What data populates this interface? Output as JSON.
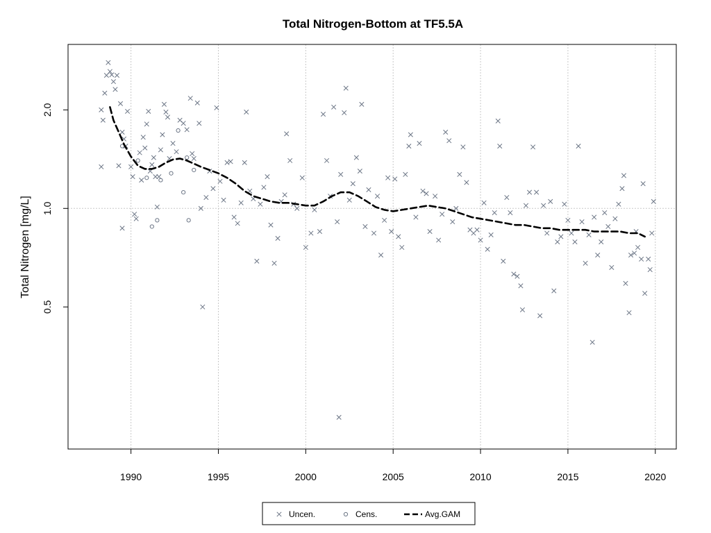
{
  "chart_data": {
    "type": "scatter",
    "title": "Total Nitrogen-Bottom at TF5.5A",
    "xlabel": "",
    "ylabel": "Total Nitrogen [mg/L]",
    "y_scale": "log",
    "xlim": [
      1986.4,
      2021.2
    ],
    "ylim": [
      0.184,
      3.17
    ],
    "x_ticks": [
      1990,
      1995,
      2000,
      2005,
      2010,
      2015,
      2020
    ],
    "x_tick_labels": [
      "1990",
      "1995",
      "2000",
      "2005",
      "2010",
      "2015",
      "2020"
    ],
    "y_ticks": [
      0.5,
      1.0,
      2.0
    ],
    "y_tick_labels": [
      "0.5",
      "1.0",
      "2.0"
    ],
    "grid": true,
    "reference_line_y": 1.0,
    "legend_position": "bottom-center",
    "colors": {
      "points": "#6b7585",
      "gam": "#000000",
      "grid": "#c8c8c8",
      "axes": "#000000"
    },
    "series": [
      {
        "name": "Uncen.",
        "marker": "x",
        "points": [
          [
            1988.3,
            2.0
          ],
          [
            1988.4,
            1.86
          ],
          [
            1988.5,
            2.25
          ],
          [
            1988.6,
            2.55
          ],
          [
            1988.7,
            2.79
          ],
          [
            1988.8,
            2.62
          ],
          [
            1988.9,
            2.56
          ],
          [
            1989.0,
            2.44
          ],
          [
            1989.1,
            2.31
          ],
          [
            1989.2,
            2.55
          ],
          [
            1989.4,
            2.09
          ],
          [
            1989.5,
            1.71
          ],
          [
            1989.6,
            1.63
          ],
          [
            1989.7,
            1.55
          ],
          [
            1988.3,
            1.34
          ],
          [
            1989.3,
            1.35
          ],
          [
            1989.5,
            0.87
          ],
          [
            1989.8,
            1.98
          ],
          [
            1990.0,
            1.34
          ],
          [
            1990.1,
            1.25
          ],
          [
            1990.2,
            0.96
          ],
          [
            1990.3,
            0.93
          ],
          [
            1990.5,
            1.48
          ],
          [
            1990.6,
            1.22
          ],
          [
            1990.7,
            1.65
          ],
          [
            1990.8,
            1.53
          ],
          [
            1990.9,
            1.81
          ],
          [
            1991.0,
            1.98
          ],
          [
            1991.1,
            1.3
          ],
          [
            1991.2,
            1.36
          ],
          [
            1991.3,
            1.43
          ],
          [
            1991.4,
            1.25
          ],
          [
            1991.5,
            1.01
          ],
          [
            1991.6,
            1.25
          ],
          [
            1991.7,
            1.51
          ],
          [
            1991.8,
            1.68
          ],
          [
            1991.9,
            2.08
          ],
          [
            1992.0,
            1.97
          ],
          [
            1992.1,
            1.9
          ],
          [
            1992.2,
            1.42
          ],
          [
            1992.4,
            1.58
          ],
          [
            1992.6,
            1.49
          ],
          [
            1992.8,
            1.86
          ],
          [
            1993.0,
            1.82
          ],
          [
            1993.2,
            1.74
          ],
          [
            1993.4,
            2.17
          ],
          [
            1993.5,
            1.47
          ],
          [
            1993.6,
            1.42
          ],
          [
            1993.8,
            2.1
          ],
          [
            1993.9,
            1.82
          ],
          [
            1994.0,
            1.0
          ],
          [
            1994.1,
            0.5
          ],
          [
            1994.3,
            1.08
          ],
          [
            1994.5,
            1.3
          ],
          [
            1994.7,
            1.15
          ],
          [
            1994.9,
            2.03
          ],
          [
            1995.1,
            1.21
          ],
          [
            1995.3,
            1.06
          ],
          [
            1995.5,
            1.38
          ],
          [
            1995.7,
            1.39
          ],
          [
            1995.9,
            0.94
          ],
          [
            1996.1,
            0.9
          ],
          [
            1996.3,
            1.04
          ],
          [
            1996.5,
            1.38
          ],
          [
            1996.6,
            1.97
          ],
          [
            1996.8,
            1.13
          ],
          [
            1997.0,
            1.07
          ],
          [
            1997.2,
            0.69
          ],
          [
            1997.4,
            1.03
          ],
          [
            1997.6,
            1.16
          ],
          [
            1997.8,
            1.25
          ],
          [
            1998.0,
            0.89
          ],
          [
            1998.2,
            0.68
          ],
          [
            1998.4,
            0.81
          ],
          [
            1998.6,
            1.05
          ],
          [
            1998.8,
            1.1
          ],
          [
            1998.9,
            1.69
          ],
          [
            1999.1,
            1.4
          ],
          [
            1999.3,
            1.03
          ],
          [
            1999.5,
            1.0
          ],
          [
            1999.8,
            1.24
          ],
          [
            2000.0,
            0.76
          ],
          [
            2000.3,
            0.84
          ],
          [
            2000.5,
            0.99
          ],
          [
            2000.8,
            0.85
          ],
          [
            2001.0,
            1.94
          ],
          [
            2001.2,
            1.4
          ],
          [
            2001.4,
            1.09
          ],
          [
            2001.6,
            2.04
          ],
          [
            2001.8,
            0.91
          ],
          [
            2001.9,
            0.23
          ],
          [
            2002.0,
            1.27
          ],
          [
            2002.2,
            1.96
          ],
          [
            2002.3,
            2.33
          ],
          [
            2002.5,
            1.06
          ],
          [
            2002.7,
            1.19
          ],
          [
            2002.9,
            1.43
          ],
          [
            2003.1,
            1.3
          ],
          [
            2003.2,
            2.08
          ],
          [
            2003.4,
            0.88
          ],
          [
            2003.6,
            1.14
          ],
          [
            2003.9,
            0.84
          ],
          [
            2004.1,
            1.09
          ],
          [
            2004.3,
            0.72
          ],
          [
            2004.5,
            0.92
          ],
          [
            2004.7,
            1.24
          ],
          [
            2004.9,
            0.85
          ],
          [
            2005.1,
            1.23
          ],
          [
            2005.3,
            0.82
          ],
          [
            2005.5,
            0.76
          ],
          [
            2005.7,
            1.27
          ],
          [
            2005.9,
            1.55
          ],
          [
            2006.0,
            1.68
          ],
          [
            2006.3,
            0.94
          ],
          [
            2006.5,
            1.58
          ],
          [
            2006.7,
            1.13
          ],
          [
            2006.9,
            1.11
          ],
          [
            2007.1,
            0.85
          ],
          [
            2007.4,
            1.09
          ],
          [
            2007.6,
            0.8
          ],
          [
            2007.8,
            0.96
          ],
          [
            2008.0,
            1.71
          ],
          [
            2008.2,
            1.61
          ],
          [
            2008.4,
            0.91
          ],
          [
            2008.6,
            1.0
          ],
          [
            2008.8,
            1.27
          ],
          [
            2009.0,
            1.54
          ],
          [
            2009.2,
            1.2
          ],
          [
            2009.4,
            0.86
          ],
          [
            2009.6,
            0.84
          ],
          [
            2009.8,
            0.86
          ],
          [
            2010.0,
            0.8
          ],
          [
            2010.2,
            1.04
          ],
          [
            2010.4,
            0.75
          ],
          [
            2010.6,
            0.83
          ],
          [
            2010.8,
            0.97
          ],
          [
            2011.0,
            1.85
          ],
          [
            2011.1,
            1.55
          ],
          [
            2011.3,
            0.69
          ],
          [
            2011.5,
            1.08
          ],
          [
            2011.7,
            0.97
          ],
          [
            2011.9,
            0.63
          ],
          [
            2012.1,
            0.62
          ],
          [
            2012.3,
            0.58
          ],
          [
            2012.4,
            0.49
          ],
          [
            2012.6,
            1.02
          ],
          [
            2012.8,
            1.12
          ],
          [
            2013.0,
            1.54
          ],
          [
            2013.2,
            1.12
          ],
          [
            2013.4,
            0.47
          ],
          [
            2013.6,
            1.02
          ],
          [
            2013.8,
            0.84
          ],
          [
            2014.0,
            1.05
          ],
          [
            2014.2,
            0.56
          ],
          [
            2014.4,
            0.79
          ],
          [
            2014.6,
            0.82
          ],
          [
            2014.8,
            1.03
          ],
          [
            2015.0,
            0.92
          ],
          [
            2015.2,
            0.84
          ],
          [
            2015.4,
            0.79
          ],
          [
            2015.6,
            1.55
          ],
          [
            2015.8,
            0.91
          ],
          [
            2016.0,
            0.68
          ],
          [
            2016.2,
            0.83
          ],
          [
            2016.4,
            0.39
          ],
          [
            2016.5,
            0.94
          ],
          [
            2016.7,
            0.72
          ],
          [
            2016.9,
            0.79
          ],
          [
            2017.1,
            0.97
          ],
          [
            2017.3,
            0.88
          ],
          [
            2017.5,
            0.66
          ],
          [
            2017.7,
            0.93
          ],
          [
            2017.9,
            1.03
          ],
          [
            2018.1,
            1.15
          ],
          [
            2018.2,
            1.26
          ],
          [
            2018.3,
            0.59
          ],
          [
            2018.5,
            0.48
          ],
          [
            2018.6,
            0.72
          ],
          [
            2018.8,
            0.73
          ],
          [
            2018.9,
            0.85
          ],
          [
            2019.0,
            0.76
          ],
          [
            2019.2,
            0.7
          ],
          [
            2019.3,
            1.19
          ],
          [
            2019.4,
            0.55
          ],
          [
            2019.6,
            0.7
          ],
          [
            2019.7,
            0.65
          ],
          [
            2019.8,
            0.84
          ],
          [
            2019.9,
            1.05
          ]
        ]
      },
      {
        "name": "Cens.",
        "marker": "o",
        "points": [
          [
            1989.5,
            1.55
          ],
          [
            1990.4,
            1.4
          ],
          [
            1990.9,
            1.24
          ],
          [
            1991.2,
            0.88
          ],
          [
            1991.5,
            0.92
          ],
          [
            1991.7,
            1.22
          ],
          [
            1992.3,
            1.28
          ],
          [
            1992.7,
            1.73
          ],
          [
            1993.0,
            1.12
          ],
          [
            1993.2,
            1.43
          ],
          [
            1993.3,
            0.92
          ],
          [
            1993.6,
            1.31
          ]
        ]
      },
      {
        "name": "Avg.GAM",
        "line": "dashed",
        "points": [
          [
            1988.8,
            2.04
          ],
          [
            1989.0,
            1.86
          ],
          [
            1989.3,
            1.71
          ],
          [
            1989.6,
            1.57
          ],
          [
            1990.0,
            1.44
          ],
          [
            1990.4,
            1.35
          ],
          [
            1990.8,
            1.32
          ],
          [
            1991.2,
            1.32
          ],
          [
            1991.6,
            1.34
          ],
          [
            1992.0,
            1.38
          ],
          [
            1992.4,
            1.41
          ],
          [
            1992.8,
            1.42
          ],
          [
            1993.2,
            1.4
          ],
          [
            1993.6,
            1.37
          ],
          [
            1994.0,
            1.34
          ],
          [
            1994.5,
            1.31
          ],
          [
            1995.0,
            1.28
          ],
          [
            1995.5,
            1.24
          ],
          [
            1996.0,
            1.19
          ],
          [
            1996.5,
            1.13
          ],
          [
            1997.0,
            1.09
          ],
          [
            1997.5,
            1.07
          ],
          [
            1998.0,
            1.05
          ],
          [
            1998.5,
            1.04
          ],
          [
            1999.0,
            1.04
          ],
          [
            1999.5,
            1.03
          ],
          [
            2000.0,
            1.02
          ],
          [
            2000.5,
            1.02
          ],
          [
            2001.0,
            1.05
          ],
          [
            2001.5,
            1.09
          ],
          [
            2002.0,
            1.12
          ],
          [
            2002.5,
            1.12
          ],
          [
            2003.0,
            1.09
          ],
          [
            2003.5,
            1.05
          ],
          [
            2004.0,
            1.01
          ],
          [
            2004.5,
            0.99
          ],
          [
            2005.0,
            0.98
          ],
          [
            2005.5,
            0.99
          ],
          [
            2006.0,
            1.0
          ],
          [
            2006.5,
            1.01
          ],
          [
            2007.0,
            1.02
          ],
          [
            2007.5,
            1.01
          ],
          [
            2008.0,
            1.0
          ],
          [
            2008.5,
            0.98
          ],
          [
            2009.0,
            0.96
          ],
          [
            2009.5,
            0.94
          ],
          [
            2010.0,
            0.93
          ],
          [
            2010.5,
            0.92
          ],
          [
            2011.0,
            0.91
          ],
          [
            2011.5,
            0.9
          ],
          [
            2012.0,
            0.89
          ],
          [
            2012.5,
            0.89
          ],
          [
            2013.0,
            0.88
          ],
          [
            2013.5,
            0.87
          ],
          [
            2014.0,
            0.87
          ],
          [
            2014.5,
            0.86
          ],
          [
            2015.0,
            0.86
          ],
          [
            2015.5,
            0.86
          ],
          [
            2016.0,
            0.86
          ],
          [
            2016.5,
            0.85
          ],
          [
            2017.0,
            0.85
          ],
          [
            2017.5,
            0.85
          ],
          [
            2018.0,
            0.85
          ],
          [
            2018.5,
            0.84
          ],
          [
            2019.0,
            0.84
          ],
          [
            2019.4,
            0.82
          ]
        ]
      }
    ]
  }
}
